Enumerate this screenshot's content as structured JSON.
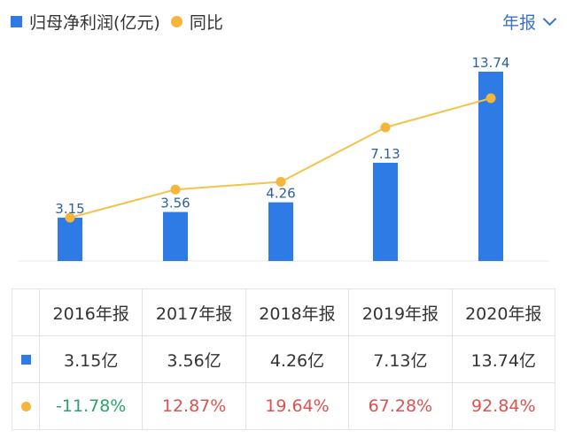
{
  "legend": {
    "bar_label": "归母净利润(亿元)",
    "line_label": "同比"
  },
  "period_selector": {
    "label": "年报"
  },
  "colors": {
    "bar": "#2f7be6",
    "line": "#f5b53a",
    "negative": "#2aa36b",
    "positive": "#d9534f"
  },
  "chart_data": {
    "type": "bar",
    "categories": [
      "2016年报",
      "2017年报",
      "2018年报",
      "2019年报",
      "2020年报"
    ],
    "series": [
      {
        "name": "归母净利润(亿元)",
        "type": "bar",
        "values": [
          3.15,
          3.56,
          4.26,
          7.13,
          13.74
        ],
        "labels": [
          "3.15",
          "3.56",
          "4.26",
          "7.13",
          "13.74"
        ]
      },
      {
        "name": "同比",
        "type": "line",
        "values": [
          -11.78,
          12.87,
          19.64,
          67.28,
          92.84
        ]
      }
    ],
    "grid": false
  },
  "table": {
    "headers": [
      "2016年报",
      "2017年报",
      "2018年报",
      "2019年报",
      "2020年报"
    ],
    "profit_row": [
      "3.15亿",
      "3.56亿",
      "4.26亿",
      "7.13亿",
      "13.74亿"
    ],
    "yoy_row": [
      "-11.78%",
      "12.87%",
      "19.64%",
      "67.28%",
      "92.84%"
    ]
  }
}
